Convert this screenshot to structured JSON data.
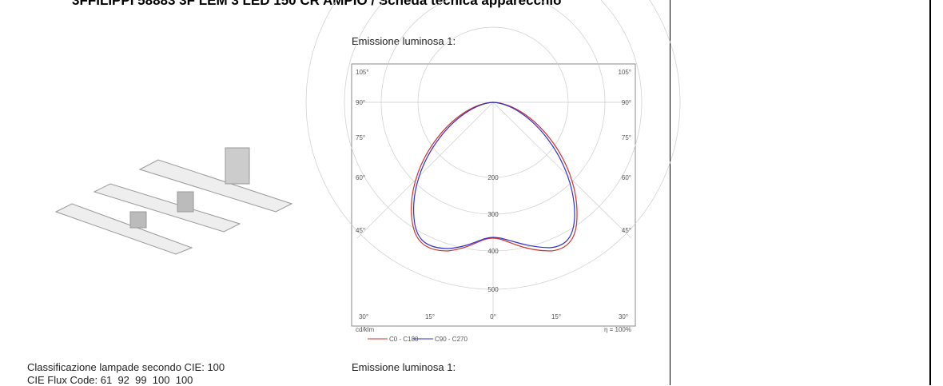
{
  "header": {
    "title": "3FFILIPPI 58883 3F LEM 3 LED 150 CR AMPIO / Scheda tecnica apparecchio"
  },
  "section_1": {
    "heading": "Emissione luminosa 1:",
    "diagram": {
      "angle_labels_left": [
        "105°",
        "90°",
        "75°",
        "60°",
        "45°"
      ],
      "angle_labels_right": [
        "105°",
        "90°",
        "75°",
        "60°",
        "45°"
      ],
      "bottom_labels": [
        "30°",
        "15°",
        "0°",
        "15°",
        "30°"
      ],
      "radial_labels": [
        "200",
        "300",
        "400",
        "500"
      ],
      "unit": "cd/klm",
      "efficiency": "η = 100%",
      "legend": [
        "C0 - C180",
        "C90 - C270"
      ]
    }
  },
  "info": {
    "classification": "Classificazione lampade secondo CIE: 100",
    "flux_code": "CIE Flux Code: 61  92  99  100  100"
  },
  "section_2": {
    "heading": "Emissione luminosa 1:"
  }
}
